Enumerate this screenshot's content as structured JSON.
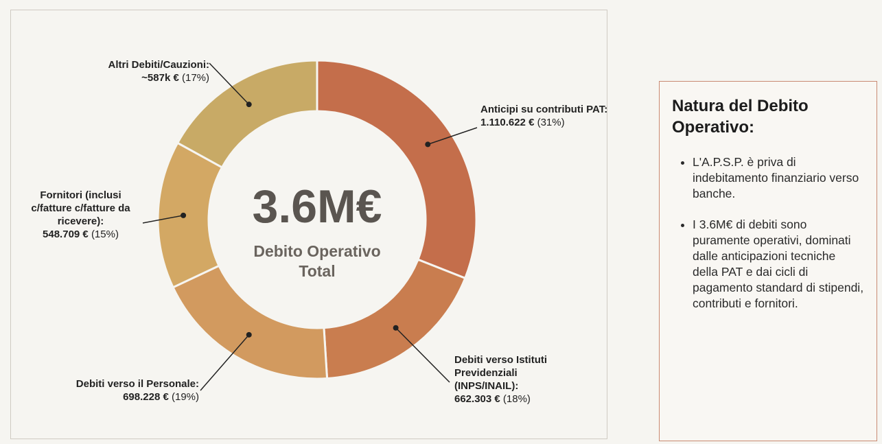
{
  "chart_data": {
    "type": "pie",
    "donut": true,
    "center_value": "3.6M€",
    "center_label": "Debito Operativo Total",
    "categories": [
      "Anticipi su contributi PAT:",
      "Debiti verso Istituti Previdenziali (INPS/INAIL):",
      "Debiti verso il Personale:",
      "Fornitori (inclusi c/fatture c/fatture da ricevere):",
      "Altri Debiti/Cauzioni:"
    ],
    "amounts": [
      "1.110.622 €",
      "662.303 €",
      "698.228 €",
      "548.709 €",
      "~587k €"
    ],
    "values": [
      31,
      18,
      19,
      15,
      17
    ],
    "value_labels": [
      "(31%)",
      "(18%)",
      "(19%)",
      "(15%)",
      "(17%)"
    ],
    "colors": [
      "#c46e4b",
      "#c97d4f",
      "#d29a5f",
      "#d3a864",
      "#c8aa66"
    ]
  },
  "panel": {
    "title": "Natura del Debito Operativo:",
    "bullets": [
      "L'A.P.S.P. è priva di indebitamento finanziario verso banche.",
      "I 3.6M€ di debiti sono puramente operativi, dominati dalle anticipazioni tecniche della PAT e dai cicli di pagamento standard di stipendi, contributi e fornitori."
    ]
  }
}
